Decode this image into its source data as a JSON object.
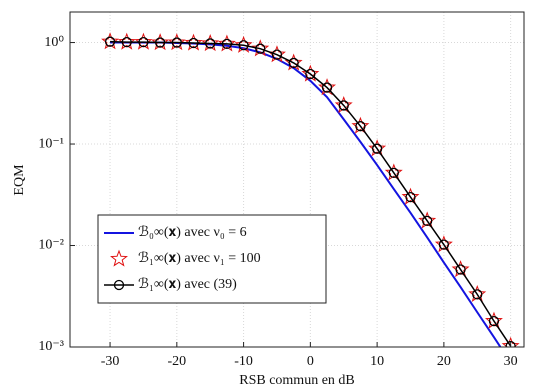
{
  "chart_data": {
    "type": "line",
    "xlabel": "RSB commun en dB",
    "ylabel": "EQM",
    "x": [
      -30,
      -27.5,
      -25,
      -22.5,
      -20,
      -17.5,
      -15,
      -12.5,
      -10,
      -7.5,
      -5,
      -2.5,
      0,
      2.5,
      5,
      7.5,
      10,
      12.5,
      15,
      17.5,
      20,
      22.5,
      25,
      27.5,
      30
    ],
    "series": [
      {
        "name": "ℬ₀∞(𝐱) avec ν₀ = 6",
        "color": "#1414e0",
        "marker": "none",
        "values": [
          1.0,
          1.0,
          1.0,
          1.0,
          0.99,
          0.98,
          0.96,
          0.93,
          0.88,
          0.8,
          0.69,
          0.56,
          0.42,
          0.29,
          0.175,
          0.105,
          0.062,
          0.036,
          0.021,
          0.012,
          0.0068,
          0.0039,
          0.0022,
          0.00125,
          0.0007
        ]
      },
      {
        "name": "ℬ₁∞(𝐱) avec ν₁ = 100",
        "color": "#e01010",
        "marker": "star",
        "values": [
          1.02,
          1.01,
          1.01,
          1.0,
          1.0,
          0.99,
          0.98,
          0.97,
          0.94,
          0.87,
          0.76,
          0.63,
          0.49,
          0.36,
          0.24,
          0.15,
          0.09,
          0.052,
          0.03,
          0.0175,
          0.0102,
          0.0058,
          0.0033,
          0.0018,
          0.00102
        ]
      },
      {
        "name": "ℬ₁∞(𝐱) avec (39)",
        "color": "#000000",
        "marker": "circle",
        "values": [
          1.02,
          1.01,
          1.01,
          1.0,
          1.0,
          0.99,
          0.98,
          0.97,
          0.94,
          0.87,
          0.76,
          0.63,
          0.49,
          0.36,
          0.24,
          0.15,
          0.09,
          0.052,
          0.03,
          0.0175,
          0.0102,
          0.0058,
          0.0033,
          0.0018,
          0.00102
        ]
      }
    ],
    "xlim": [
      -36,
      32
    ],
    "ylim": [
      0.001,
      2
    ],
    "ylog": true,
    "xticks": [
      -30,
      -20,
      -10,
      0,
      10,
      20,
      30
    ],
    "yticks": [
      {
        "value": 0.001,
        "label": "10⁻³"
      },
      {
        "value": 0.01,
        "label": "10⁻²"
      },
      {
        "value": 0.1,
        "label": "10⁻¹"
      },
      {
        "value": 1,
        "label": "10⁰"
      }
    ],
    "grid": true,
    "legend": "lower left"
  }
}
